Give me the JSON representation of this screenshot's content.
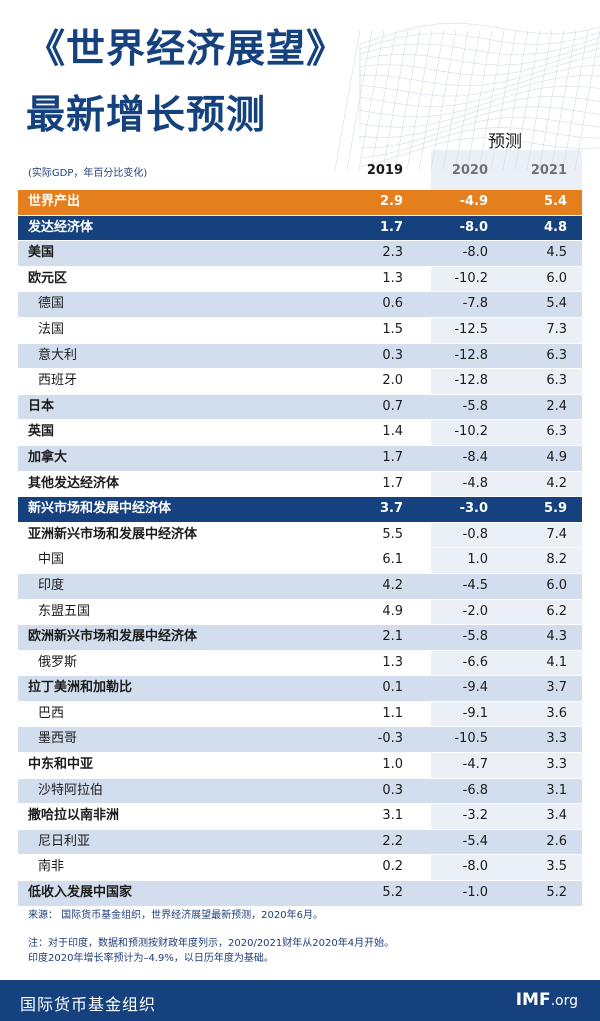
{
  "header": {
    "title_line1": "《世界经济展望》",
    "title_line2": "最新增长预测",
    "forecast_label": "预测",
    "unit_label": "(实际GDP，年百分比变化)",
    "columns": [
      "2019",
      "2020",
      "2021"
    ]
  },
  "rows": [
    {
      "name": "世界产出",
      "v2019": "2.9",
      "v2020": "-4.9",
      "v2021": "5.4",
      "style": "orange"
    },
    {
      "name": "发达经济体",
      "v2019": "1.7",
      "v2020": "-8.0",
      "v2021": "4.8",
      "style": "blue"
    },
    {
      "name": "美国",
      "v2019": "2.3",
      "v2020": "-8.0",
      "v2021": "4.5",
      "style": "shaded-bold"
    },
    {
      "name": "欧元区",
      "v2019": "1.3",
      "v2020": "-10.2",
      "v2021": "6.0",
      "style": "plain-bold"
    },
    {
      "name": "德国",
      "v2019": "0.6",
      "v2020": "-7.8",
      "v2021": "5.4",
      "style": "shaded-indent"
    },
    {
      "name": "法国",
      "v2019": "1.5",
      "v2020": "-12.5",
      "v2021": "7.3",
      "style": "plain-indent"
    },
    {
      "name": "意大利",
      "v2019": "0.3",
      "v2020": "-12.8",
      "v2021": "6.3",
      "style": "shaded-indent"
    },
    {
      "name": "西班牙",
      "v2019": "2.0",
      "v2020": "-12.8",
      "v2021": "6.3",
      "style": "plain-indent"
    },
    {
      "name": "日本",
      "v2019": "0.7",
      "v2020": "-5.8",
      "v2021": "2.4",
      "style": "shaded-bold"
    },
    {
      "name": "英国",
      "v2019": "1.4",
      "v2020": "-10.2",
      "v2021": "6.3",
      "style": "plain-bold"
    },
    {
      "name": "加拿大",
      "v2019": "1.7",
      "v2020": "-8.4",
      "v2021": "4.9",
      "style": "shaded-bold"
    },
    {
      "name": "其他发达经济体",
      "v2019": "1.7",
      "v2020": "-4.8",
      "v2021": "4.2",
      "style": "plain-bold"
    },
    {
      "name": "新兴市场和发展中经济体",
      "v2019": "3.7",
      "v2020": "-3.0",
      "v2021": "5.9",
      "style": "blue"
    },
    {
      "name": "亚洲新兴市场和发展中经济体",
      "v2019": "5.5",
      "v2020": "-0.8",
      "v2021": "7.4",
      "style": "plain-bold"
    },
    {
      "name": "中国",
      "v2019": "6.1",
      "v2020": "1.0",
      "v2021": "8.2",
      "style": "plain-indent"
    },
    {
      "name": "印度",
      "v2019": "4.2",
      "v2020": "-4.5",
      "v2021": "6.0",
      "style": "shaded-indent"
    },
    {
      "name": "东盟五国",
      "v2019": "4.9",
      "v2020": "-2.0",
      "v2021": "6.2",
      "style": "plain-indent"
    },
    {
      "name": "欧洲新兴市场和发展中经济体",
      "v2019": "2.1",
      "v2020": "-5.8",
      "v2021": "4.3",
      "style": "shaded-bold"
    },
    {
      "name": "俄罗斯",
      "v2019": "1.3",
      "v2020": "-6.6",
      "v2021": "4.1",
      "style": "plain-indent"
    },
    {
      "name": "拉丁美洲和加勒比",
      "v2019": "0.1",
      "v2020": "-9.4",
      "v2021": "3.7",
      "style": "shaded-bold"
    },
    {
      "name": "巴西",
      "v2019": "1.1",
      "v2020": "-9.1",
      "v2021": "3.6",
      "style": "plain-indent"
    },
    {
      "name": "墨西哥",
      "v2019": "-0.3",
      "v2020": "-10.5",
      "v2021": "3.3",
      "style": "shaded-indent"
    },
    {
      "name": "中东和中亚",
      "v2019": "1.0",
      "v2020": "-4.7",
      "v2021": "3.3",
      "style": "plain-bold"
    },
    {
      "name": "沙特阿拉伯",
      "v2019": "0.3",
      "v2020": "-6.8",
      "v2021": "3.1",
      "style": "shaded-indent"
    },
    {
      "name": "撒哈拉以南非洲",
      "v2019": "3.1",
      "v2020": "-3.2",
      "v2021": "3.4",
      "style": "plain-bold"
    },
    {
      "name": "尼日利亚",
      "v2019": "2.2",
      "v2020": "-5.4",
      "v2021": "2.6",
      "style": "shaded-indent"
    },
    {
      "name": "南非",
      "v2019": "0.2",
      "v2020": "-8.0",
      "v2021": "3.5",
      "style": "plain-indent"
    },
    {
      "name": "低收入发展中国家",
      "v2019": "5.2",
      "v2020": "-1.0",
      "v2021": "5.2",
      "style": "shaded-bold"
    }
  ],
  "notes": {
    "source": "来源：    国际货币基金组织，世界经济展望最新预测，2020年6月。",
    "note_line1": "注：对于印度，数据和预测按财政年度列示，2020/2021财年从2020年4月开始。",
    "note_line2": "印度2020年增长率预计为–4.9%，以日历年度为基础。"
  },
  "footer": {
    "org_name": "国际货币基金组织",
    "logo_main": "IMF",
    "logo_suffix": ".org"
  },
  "colors": {
    "brand_blue": "#15427f",
    "accent_orange": "#e57e1c",
    "row_shade": "#d2deee"
  }
}
